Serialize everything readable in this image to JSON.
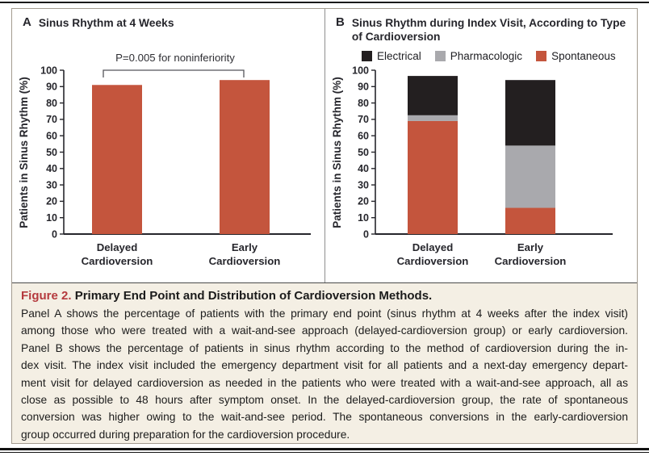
{
  "panelA": {
    "letter": "A",
    "title": "Sinus Rhythm at 4 Weeks",
    "annotation": "P=0.005 for noninferiority",
    "ylabel": "Patients in Sinus Rhythm (%)"
  },
  "panelB": {
    "letter": "B",
    "title_line1": "Sinus Rhythm during Index Visit, According to Type",
    "title_line2": "of Cardioversion",
    "ylabel": "Patients in Sinus Rhythm (%)",
    "legend": [
      {
        "label": "Electrical",
        "color": "#231f20"
      },
      {
        "label": "Pharmacologic",
        "color": "#a9a9ad"
      },
      {
        "label": "Spontaneous",
        "color": "#c4553d"
      }
    ]
  },
  "chart_data": [
    {
      "type": "bar",
      "panel": "A",
      "title": "Sinus Rhythm at 4 Weeks",
      "categories": [
        [
          "Delayed",
          "Cardioversion"
        ],
        [
          "Early",
          "Cardioversion"
        ]
      ],
      "values": [
        91,
        94
      ],
      "bar_color": "#c4553d",
      "ylabel": "Patients in Sinus Rhythm (%)",
      "xlabel": "",
      "ylim": [
        0,
        100
      ],
      "ytick_step": 10,
      "grid": false,
      "annotation": "P=0.005 for noninferiority"
    },
    {
      "type": "bar",
      "panel": "B",
      "stacked": true,
      "title": "Sinus Rhythm during Index Visit, According to Type of Cardioversion",
      "categories": [
        [
          "Delayed",
          "Cardioversion"
        ],
        [
          "Early",
          "Cardioversion"
        ]
      ],
      "series": [
        {
          "name": "Spontaneous",
          "color": "#c4553d",
          "values": [
            69,
            16
          ]
        },
        {
          "name": "Pharmacologic",
          "color": "#a9a9ad",
          "values": [
            3.5,
            38
          ]
        },
        {
          "name": "Electrical",
          "color": "#231f20",
          "values": [
            24,
            40
          ]
        }
      ],
      "ylabel": "Patients in Sinus Rhythm (%)",
      "xlabel": "",
      "ylim": [
        0,
        100
      ],
      "ytick_step": 10,
      "grid": false,
      "legend_position": "top"
    }
  ],
  "caption": {
    "label": "Figure 2.",
    "label_color": "#b53a3e",
    "title": "Primary End Point and Distribution of Cardioversion Methods.",
    "lines": [
      "Panel A shows the percentage of patients with the primary end point (sinus rhythm at 4 weeks after the index visit)",
      "among those who were treated with a wait-and-see approach (delayed-cardioversion group) or early cardioversion.",
      "Panel B shows the percentage of patients in sinus rhythm according to the method of cardioversion during the in-",
      "dex visit. The index visit included the emergency department visit for all patients and a next-day emergency depart-",
      "ment visit for delayed cardioversion as needed in the patients who were treated with a wait-and-see approach, all as",
      "close as possible to 48 hours after symptom onset. In the delayed-cardioversion group, the rate of spontaneous",
      "conversion was higher owing to the wait-and-see period. The spontaneous conversions in the early-cardioversion",
      "group occurred during preparation for the cardioversion procedure."
    ]
  }
}
